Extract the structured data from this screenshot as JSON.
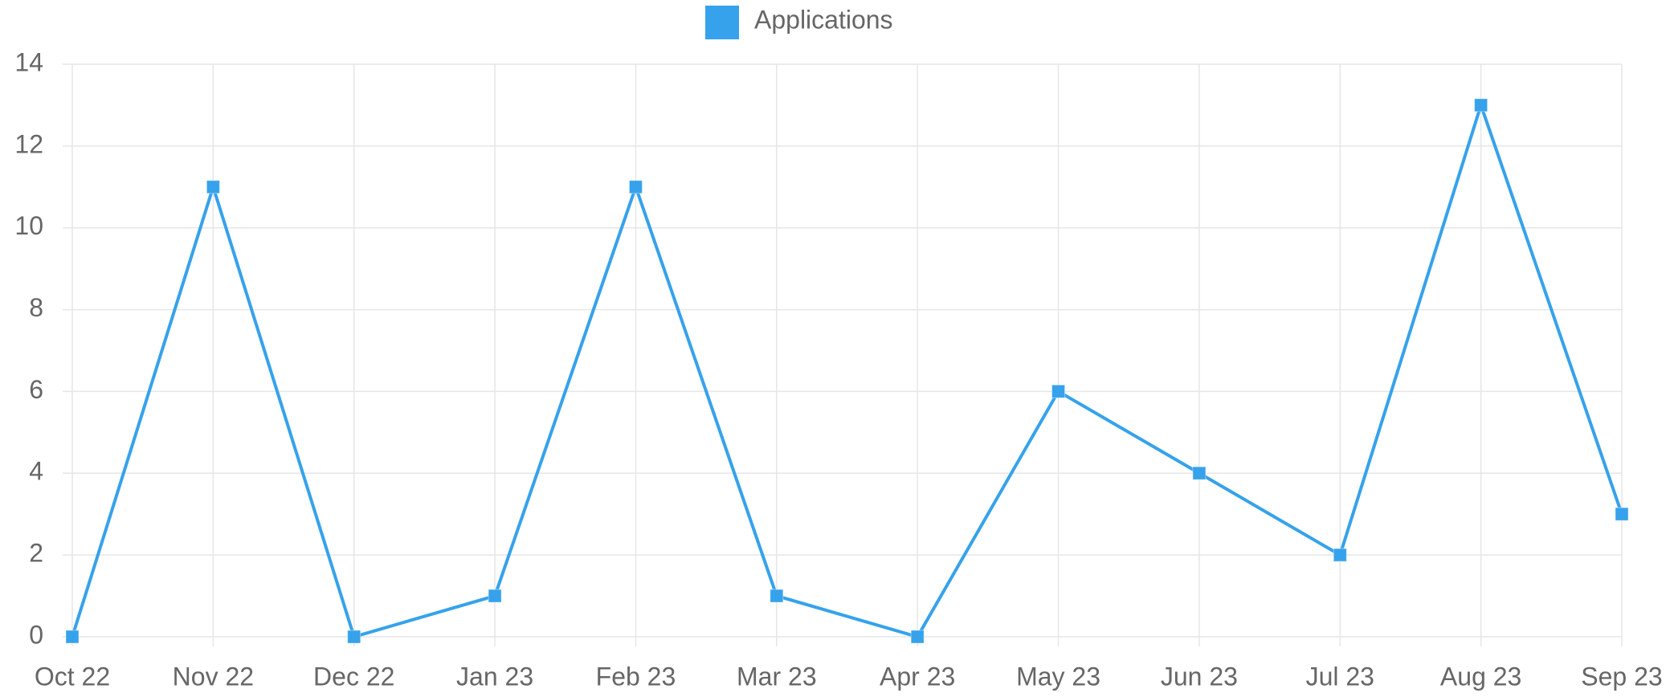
{
  "chart_data": {
    "type": "line",
    "categories": [
      "Oct 22",
      "Nov 22",
      "Dec 22",
      "Jan 23",
      "Feb 23",
      "Mar 23",
      "Apr 23",
      "May 23",
      "Jun 23",
      "Jul 23",
      "Aug 23",
      "Sep 23"
    ],
    "series": [
      {
        "name": "Applications",
        "color": "#36a2eb",
        "values": [
          0,
          11,
          0,
          1,
          11,
          1,
          0,
          6,
          4,
          2,
          13,
          3
        ]
      }
    ],
    "ylim": [
      0,
      14
    ],
    "yticks": [
      0,
      2,
      4,
      6,
      8,
      10,
      12,
      14
    ],
    "grid": true,
    "legend": "top"
  }
}
